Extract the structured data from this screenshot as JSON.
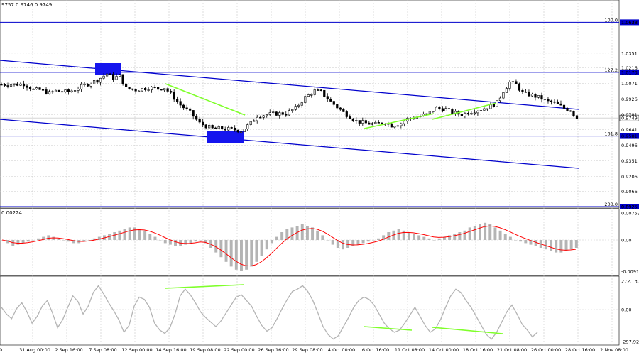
{
  "header": {
    "ohlc_text": "9757 0.9746 0.9749"
  },
  "colors": {
    "bull_candle": "#000000",
    "bear_candle": "#000000",
    "grid": "#c8c8c8",
    "level_line": "#0000cc",
    "channel_line": "#0000cc",
    "highlight_box": "#1515ee",
    "divergence_line": "#7fff2a",
    "macd_histogram": "#b4b4b4",
    "macd_signal": "#ff0000",
    "cci_line": "#b4b4b4",
    "current_price_bg": "#ffffff",
    "level_label_bg": "#0000cc"
  },
  "x_labels": [
    "0",
    "31 Aug 00:00",
    "2 Sep 16:00",
    "7 Sep 08:00",
    "12 Sep 00:00",
    "14 Sep 16:00",
    "19 Sep 08:00",
    "22 Sep 00:00",
    "26 Sep 16:00",
    "29 Sep 08:00",
    "4 Oct 00:00",
    "6 Oct 16:00",
    "11 Oct 08:00",
    "14 Oct 00:00",
    "18 Oct 16:00",
    "21 Oct 08:00",
    "26 Oct 00:00",
    "28 Oct 16:00",
    "2 Nov 08:00"
  ],
  "price_pane": {
    "y_ticks": [
      "1.0638",
      "1.0351",
      "1.0216",
      "1.0071",
      "0.9926",
      "0.9781",
      "0.9641",
      "0.9496",
      "0.9351",
      "0.9206",
      "0.9066",
      "0.8925"
    ],
    "ylim": [
      0.8925,
      1.07
    ],
    "current_price": "0.9749",
    "fib_levels": [
      {
        "label": "100.0",
        "value": 1.0638,
        "tag": "1.0638"
      },
      {
        "label": "127.2",
        "value": 1.0173,
        "tag": "1.0173"
      },
      {
        "label": "161.8",
        "value": 0.9581,
        "tag": "0.9581"
      },
      {
        "label": "200.0",
        "value": 0.8925,
        "tag": "0.8925"
      }
    ]
  },
  "macd_pane": {
    "title": "0.00224",
    "y_ticks": [
      "0.00752",
      "0.00",
      "-0.00912"
    ]
  },
  "cci_pane": {
    "y_ticks": [
      "272.1309",
      "0.00",
      "-297.920"
    ]
  },
  "chart_data": {
    "type": "line",
    "title": "",
    "price_path": [
      [
        0,
        1.006
      ],
      [
        4,
        1.006
      ],
      [
        7,
        1.0065
      ],
      [
        10,
        1.001
      ],
      [
        12,
        1.001
      ],
      [
        15,
        0.998
      ],
      [
        17,
        1.0
      ],
      [
        21,
        0.999
      ],
      [
        25,
        1.004
      ],
      [
        30,
        1.01
      ],
      [
        33,
        1.016
      ],
      [
        35,
        1.012
      ],
      [
        37,
        1.014
      ],
      [
        39,
        1.0025
      ],
      [
        42,
        1.001
      ],
      [
        46,
        1.003
      ],
      [
        49,
        1.002
      ],
      [
        51,
        1.003
      ],
      [
        53,
        0.997
      ],
      [
        56,
        0.987
      ],
      [
        59,
        0.98
      ],
      [
        62,
        0.97
      ],
      [
        66,
        0.965
      ],
      [
        69,
        0.965
      ],
      [
        73,
        0.964
      ],
      [
        75,
        0.963
      ],
      [
        78,
        0.97
      ],
      [
        80,
        0.977
      ],
      [
        83,
        0.978
      ],
      [
        86,
        0.979
      ],
      [
        89,
        0.979
      ],
      [
        92,
        0.984
      ],
      [
        95,
        0.994
      ],
      [
        98,
        1.0
      ],
      [
        100,
        0.999
      ],
      [
        103,
        0.99
      ],
      [
        107,
        0.98
      ],
      [
        111,
        0.972
      ],
      [
        114,
        0.97
      ],
      [
        117,
        0.969
      ],
      [
        120,
        0.971
      ],
      [
        122,
        0.968
      ],
      [
        125,
        0.97
      ],
      [
        127,
        0.974
      ],
      [
        130,
        0.976
      ],
      [
        133,
        0.978
      ],
      [
        136,
        0.984
      ],
      [
        139,
        0.983
      ],
      [
        141,
        0.98
      ],
      [
        144,
        0.978
      ],
      [
        147,
        0.981
      ],
      [
        150,
        0.983
      ],
      [
        153,
        0.986
      ],
      [
        155,
        0.989
      ],
      [
        157,
        1.0
      ],
      [
        159,
        1.008
      ],
      [
        161,
        1.006
      ],
      [
        163,
        0.998
      ],
      [
        166,
        0.996
      ],
      [
        169,
        0.993
      ],
      [
        171,
        0.99
      ],
      [
        173,
        0.989
      ],
      [
        176,
        0.984
      ],
      [
        178,
        0.982
      ],
      [
        180,
        0.9749
      ]
    ],
    "macd_histogram": [
      0,
      -2,
      -4,
      -3,
      -2,
      -1,
      0,
      1,
      2,
      3,
      2,
      1,
      0,
      -1,
      -2,
      -2,
      -1,
      0,
      1,
      2,
      3,
      4,
      5,
      6,
      7,
      8,
      8,
      7,
      6,
      4,
      2,
      0,
      -2,
      -3,
      -4,
      -4,
      -3,
      -2,
      -1,
      0,
      -2,
      -5,
      -8,
      -11,
      -14,
      -17,
      -19,
      -20,
      -19,
      -17,
      -14,
      -10,
      -6,
      -2,
      2,
      5,
      7,
      8,
      9,
      10,
      9,
      8,
      6,
      3,
      0,
      -3,
      -5,
      -6,
      -5,
      -4,
      -3,
      -2,
      -1,
      0,
      1,
      3,
      5,
      6,
      7,
      6,
      5,
      4,
      3,
      2,
      1,
      0,
      1,
      2,
      3,
      4,
      5,
      6,
      8,
      9,
      10,
      11,
      10,
      8,
      6,
      4,
      2,
      0,
      -1,
      -2,
      -3,
      -4,
      -5,
      -6,
      -7,
      -8,
      -8,
      -7,
      -6,
      -5
    ],
    "cci_values": [
      20,
      -40,
      -80,
      10,
      60,
      -20,
      -120,
      -60,
      30,
      80,
      -30,
      -160,
      -90,
      20,
      120,
      70,
      -40,
      30,
      150,
      210,
      140,
      60,
      -10,
      -90,
      -200,
      -140,
      30,
      110,
      90,
      20,
      -120,
      -180,
      -210,
      -160,
      -40,
      120,
      180,
      130,
      60,
      -20,
      -70,
      -110,
      -150,
      -100,
      -30,
      40,
      110,
      130,
      80,
      30,
      -60,
      -140,
      -190,
      -160,
      -80,
      10,
      90,
      160,
      180,
      210,
      160,
      80,
      -30,
      -150,
      -220,
      -260,
      -230,
      -150,
      -70,
      20,
      80,
      110,
      90,
      40,
      -40,
      -120,
      -170,
      -200,
      -180,
      -120,
      -50,
      20,
      -60,
      -140,
      -200,
      -170,
      -90,
      20,
      120,
      180,
      150,
      80,
      20,
      -60,
      -140,
      -220,
      -260,
      -200,
      -110,
      -20,
      40,
      -40,
      -130,
      -180,
      -240,
      -200
    ]
  }
}
